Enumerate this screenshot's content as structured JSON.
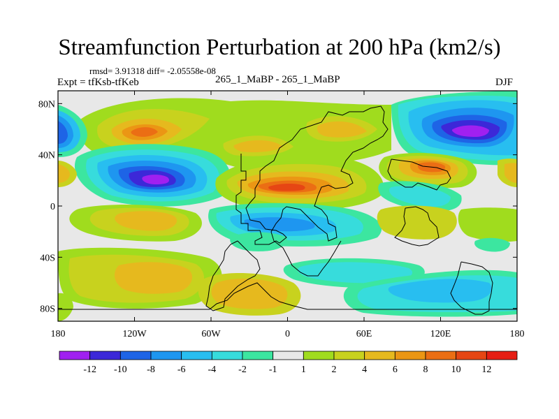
{
  "title": "Streamfunction Perturbation at 200 hPa (km2/s)",
  "stats": "rmsd= 3.91318  diff= -2.05558e-08",
  "left_label": "Expt = tfKsb-tfKeb",
  "center_label": "265_1_MaBP - 265_1_MaBP",
  "right_label": "DJF",
  "map": {
    "lat_ticks": [
      "80N",
      "40N",
      "0",
      "40S",
      "80S"
    ],
    "lat_values": [
      80,
      40,
      0,
      -40,
      -80
    ],
    "lon_ticks": [
      "180",
      "120W",
      "60W",
      "0",
      "60E",
      "120E",
      "180"
    ],
    "lon_values": [
      -180,
      -120,
      -60,
      0,
      60,
      120,
      180
    ],
    "lon_range": [
      -180,
      180
    ],
    "lat_range": [
      -90,
      90
    ]
  },
  "colorbar": {
    "labels": [
      "-12",
      "-10",
      "-8",
      "-6",
      "-4",
      "-2",
      "-1",
      "1",
      "2",
      "4",
      "6",
      "8",
      "10",
      "12"
    ],
    "colors": [
      "#a020f0",
      "#3c28d8",
      "#1e64e6",
      "#1e96f0",
      "#28bef0",
      "#37dcdc",
      "#3ce6a0",
      "#e8e8e8",
      "#a0dc1e",
      "#c8d21e",
      "#e6b91e",
      "#eb9614",
      "#eb6e14",
      "#e64614",
      "#e61e14"
    ]
  }
}
